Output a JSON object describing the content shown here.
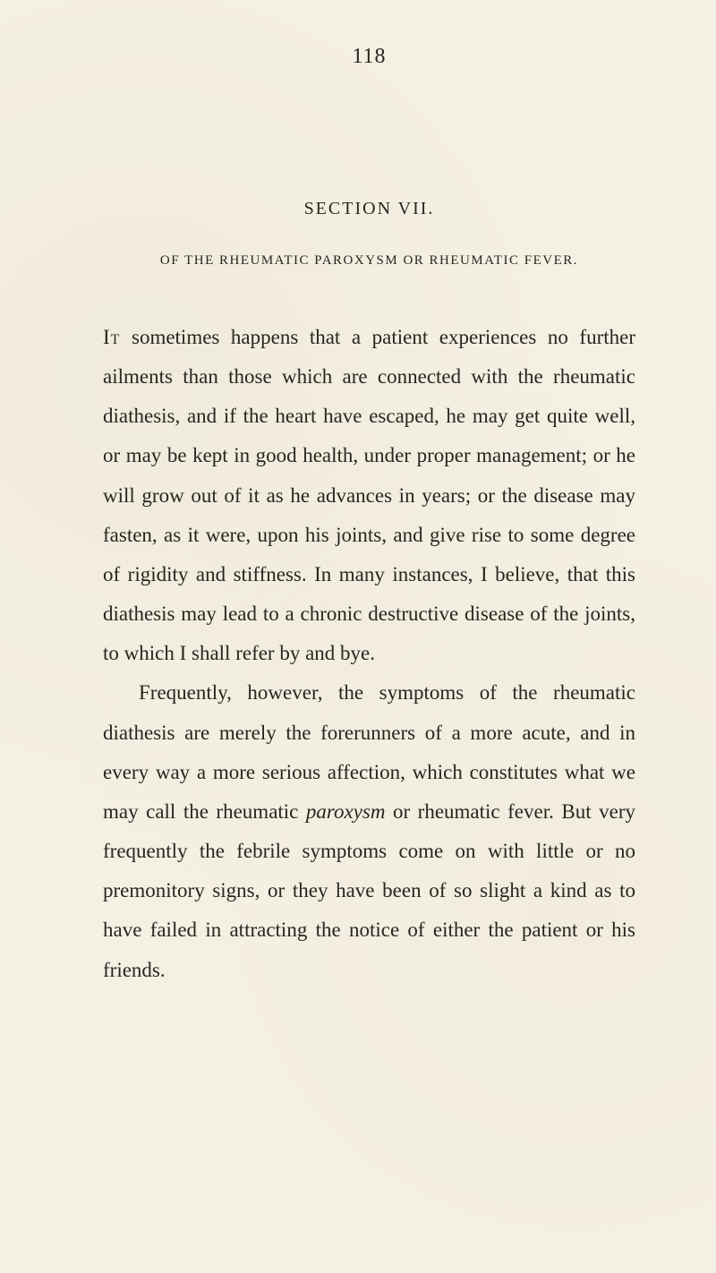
{
  "page": {
    "number": "118",
    "background_color": "#f5f1e4",
    "text_color": "#2a2520"
  },
  "section": {
    "label": "SECTION VII.",
    "title": "OF THE RHEUMATIC PAROXYSM OR RHEUMATIC FEVER."
  },
  "paragraphs": {
    "p1": {
      "lead_word": "It",
      "text": " sometimes happens that a patient experiences no further ailments than those which are connected with the rheumatic diathesis, and if the heart have escaped, he may get quite well, or may be kept in good health, under proper management; or he will grow out of it as he advances in years; or the disease may fasten, as it were, upon his joints, and give rise to some degree of rigidity and stiffness. In many instances, I believe, that this diathesis may lead to a chronic destructive disease of the joints, to which I shall refer by and bye."
    },
    "p2": {
      "text_before": "Frequently, however, the symptoms of the rheumatic diathesis are merely the forerunners of a more acute, and in every way a more serious affection, which constitutes what we may call the rheumatic ",
      "italic_word": "paroxysm",
      "text_after": " or rheumatic fever. But very frequently the febrile symptoms come on with little or no premonitory signs, or they have been of so slight a kind as to have failed in attracting the notice of either the patient or his friends."
    }
  },
  "typography": {
    "body_fontsize": 23,
    "body_lineheight": 1.92,
    "pagenumber_fontsize": 24,
    "section_fontsize": 20,
    "chapter_fontsize": 15
  }
}
